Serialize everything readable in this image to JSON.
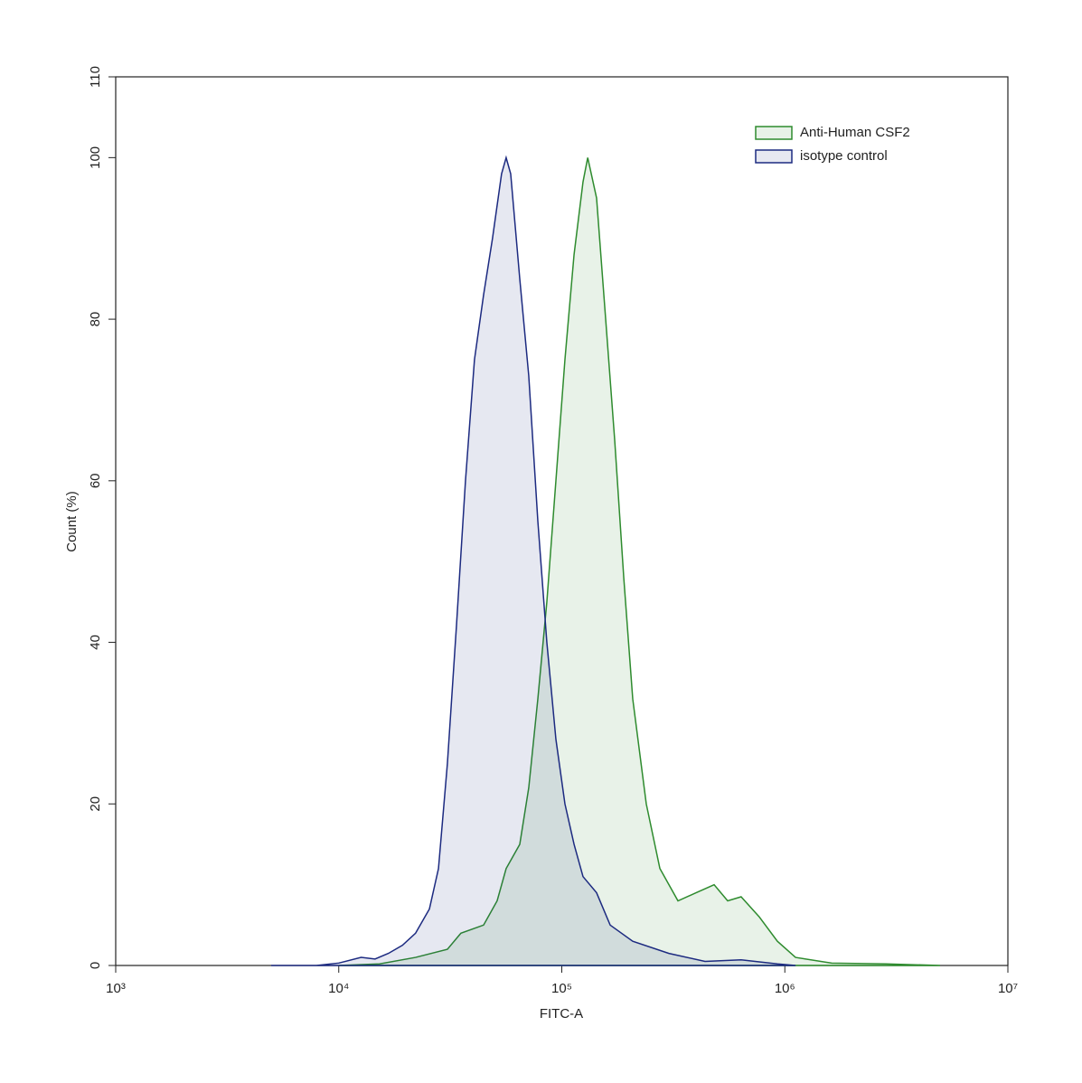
{
  "chart_data": {
    "type": "histogram-overlay",
    "x_label": "FITC-A",
    "y_label": "Count (%)",
    "xscale": "log",
    "xlim": [
      1000,
      10000000
    ],
    "xticks": [
      {
        "value": 1000,
        "label": "10³"
      },
      {
        "value": 10000,
        "label": "10⁴"
      },
      {
        "value": 100000,
        "label": "10⁵"
      },
      {
        "value": 1000000,
        "label": "10⁶"
      },
      {
        "value": 10000000,
        "label": "10⁷"
      }
    ],
    "ylim": [
      0,
      110
    ],
    "yticks": [
      0,
      20,
      40,
      60,
      80,
      100,
      110
    ],
    "legend": "upper right",
    "series": [
      {
        "name": "Anti-Human CSF2",
        "color": "#2e8b2e",
        "x": [
          10000,
          15240,
          22100,
          30700,
          35300,
          44600,
          51300,
          56300,
          64800,
          71100,
          78100,
          85700,
          94100,
          103300,
          113500,
          124500,
          130700,
          143200,
          157300,
          172700,
          189600,
          208000,
          239200,
          275300,
          331800,
          399900,
          481900,
          554300,
          636800,
          768700,
          926000,
          1117000,
          1622000,
          2839000,
          4966000
        ],
        "values": [
          0,
          0.2,
          1,
          2,
          4,
          5,
          8,
          12,
          15,
          22,
          33,
          45,
          60,
          75,
          88,
          97,
          100,
          95,
          80,
          65,
          48,
          33,
          20,
          12,
          8,
          9,
          10,
          8,
          8.5,
          6,
          3,
          1,
          0.3,
          0.2,
          0
        ]
      },
      {
        "name": "isotype control",
        "color": "#1c2a80",
        "x": [
          4980,
          7940,
          10000,
          12600,
          14550,
          16700,
          19300,
          22100,
          25500,
          28000,
          30700,
          33700,
          37000,
          40600,
          44600,
          48900,
          53700,
          56300,
          59000,
          64800,
          71100,
          78100,
          85700,
          94100,
          103300,
          113500,
          124500,
          143200,
          164800,
          208000,
          302000,
          438700,
          636800,
          926000,
          1117000
        ],
        "values": [
          0,
          0,
          0.3,
          1,
          0.8,
          1.5,
          2.5,
          4,
          7,
          12,
          25,
          42,
          60,
          75,
          83,
          90,
          98,
          100,
          98,
          85,
          73,
          55,
          40,
          28,
          20,
          15,
          11,
          9,
          5,
          3,
          1.5,
          0.5,
          0.7,
          0.2,
          0
        ]
      }
    ]
  }
}
